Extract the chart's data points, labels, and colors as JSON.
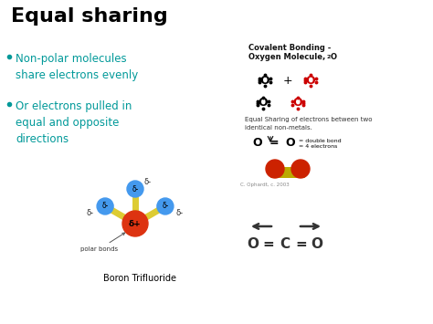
{
  "title": "Equal sharing",
  "title_color": "#000000",
  "title_fontsize": 16,
  "title_fontweight": "bold",
  "bg_color": "#ffffff",
  "bullet_color": "#009999",
  "bullet_fontsize": 8.5,
  "bullets": [
    "Non-polar molecules\nshare electrons evenly",
    "Or electrons pulled in\nequal and opposite\ndirections"
  ],
  "right_title1": "Covalent Bonding -",
  "right_title2": "Oxygen Molecule,  O",
  "right_title_sub": "2",
  "equal_sharing_text": "Equal Sharing of electrons between two\nidentical non-metals.",
  "double_bond_label1": "= double bond",
  "double_bond_label2": "= 4 electrons",
  "copyright_text": "C. Ophardt, c. 2003",
  "boron_label": "Boron Trifluoride",
  "polar_bonds_label": "polar bonds",
  "delta_plus": "δ+",
  "delta_minus": "δ-",
  "boron_color": "#DD3311",
  "fluorine_color": "#4499EE",
  "bond_color": "#DDCC33",
  "red_color": "#CC0000",
  "dark_color": "#222222"
}
